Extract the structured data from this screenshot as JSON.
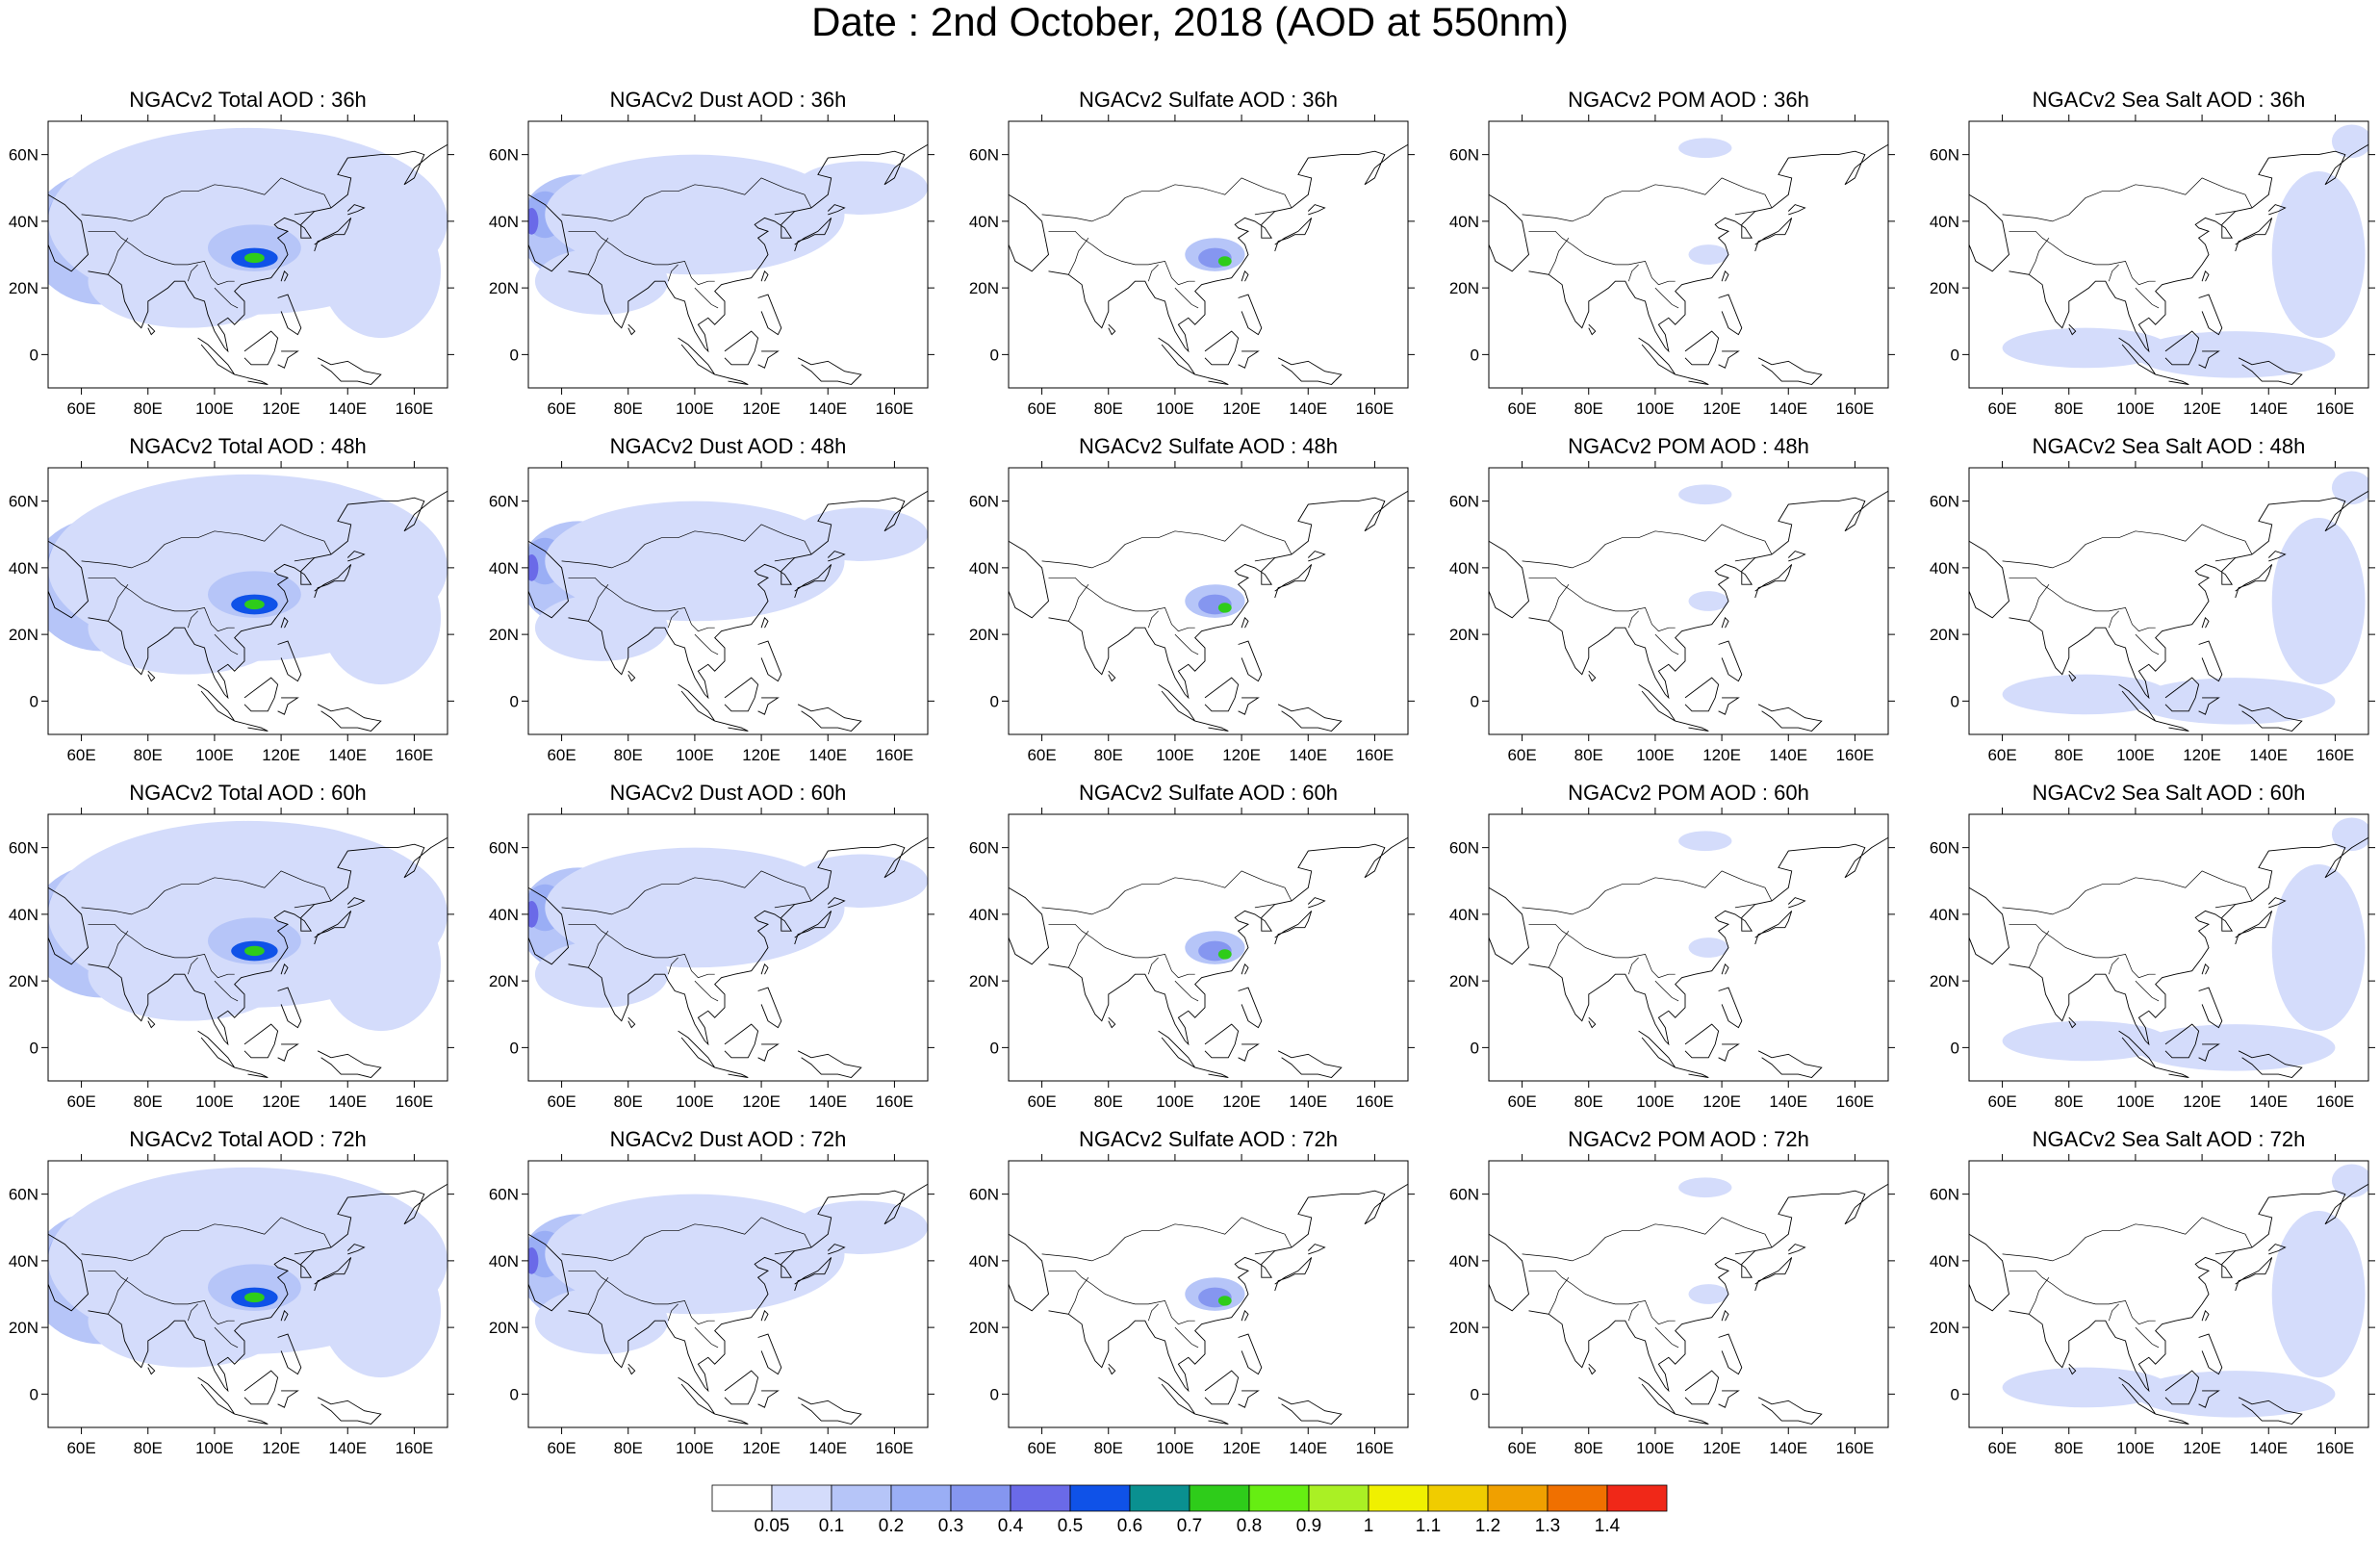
{
  "title": "Date : 2nd October, 2018 (AOD at 550nm)",
  "x_ticks": [
    "60E",
    "80E",
    "100E",
    "120E",
    "140E",
    "160E"
  ],
  "y_ticks": [
    "60N",
    "40N",
    "20N",
    "0"
  ],
  "map_extent": {
    "lon": [
      50,
      170
    ],
    "lat": [
      -10,
      70
    ]
  },
  "panels": [
    {
      "title": "NGACv2 Total AOD : 36h",
      "species": "total",
      "hour": "36h"
    },
    {
      "title": "NGACv2 Dust AOD : 36h",
      "species": "dust",
      "hour": "36h"
    },
    {
      "title": "NGACv2 Sulfate AOD : 36h",
      "species": "sulfate",
      "hour": "36h"
    },
    {
      "title": "NGACv2 POM AOD : 36h",
      "species": "pom",
      "hour": "36h"
    },
    {
      "title": "NGACv2 Sea Salt AOD : 36h",
      "species": "seasalt",
      "hour": "36h"
    },
    {
      "title": "NGACv2 Total AOD : 48h",
      "species": "total",
      "hour": "48h"
    },
    {
      "title": "NGACv2 Dust AOD : 48h",
      "species": "dust",
      "hour": "48h"
    },
    {
      "title": "NGACv2 Sulfate AOD : 48h",
      "species": "sulfate",
      "hour": "48h"
    },
    {
      "title": "NGACv2 POM AOD : 48h",
      "species": "pom",
      "hour": "48h"
    },
    {
      "title": "NGACv2 Sea Salt AOD : 48h",
      "species": "seasalt",
      "hour": "48h"
    },
    {
      "title": "NGACv2 Total AOD : 60h",
      "species": "total",
      "hour": "60h"
    },
    {
      "title": "NGACv2 Dust AOD : 60h",
      "species": "dust",
      "hour": "60h"
    },
    {
      "title": "NGACv2 Sulfate AOD : 60h",
      "species": "sulfate",
      "hour": "60h"
    },
    {
      "title": "NGACv2 POM AOD : 60h",
      "species": "pom",
      "hour": "60h"
    },
    {
      "title": "NGACv2 Sea Salt AOD : 60h",
      "species": "seasalt",
      "hour": "60h"
    },
    {
      "title": "NGACv2 Total AOD : 72h",
      "species": "total",
      "hour": "72h"
    },
    {
      "title": "NGACv2 Dust AOD : 72h",
      "species": "dust",
      "hour": "72h"
    },
    {
      "title": "NGACv2 Sulfate AOD : 72h",
      "species": "sulfate",
      "hour": "72h"
    },
    {
      "title": "NGACv2 POM AOD : 72h",
      "species": "pom",
      "hour": "72h"
    },
    {
      "title": "NGACv2 Sea Salt  AOD : 72h",
      "species": "seasalt",
      "hour": "72h"
    }
  ],
  "colorbar": {
    "labels": [
      "0.05",
      "0.1",
      "0.2",
      "0.3",
      "0.4",
      "0.5",
      "0.6",
      "0.7",
      "0.8",
      "0.9",
      "1",
      "1.1",
      "1.2",
      "1.3",
      "1.4"
    ],
    "colors": [
      "#ffffff",
      "#d4dcfb",
      "#b6c5f8",
      "#9aaef5",
      "#8596f0",
      "#6a6ae8",
      "#0f52e8",
      "#0a9090",
      "#2ecc1a",
      "#66ee12",
      "#aaf024",
      "#f0f000",
      "#f0cc00",
      "#f0a000",
      "#f07000",
      "#f02818"
    ]
  }
}
